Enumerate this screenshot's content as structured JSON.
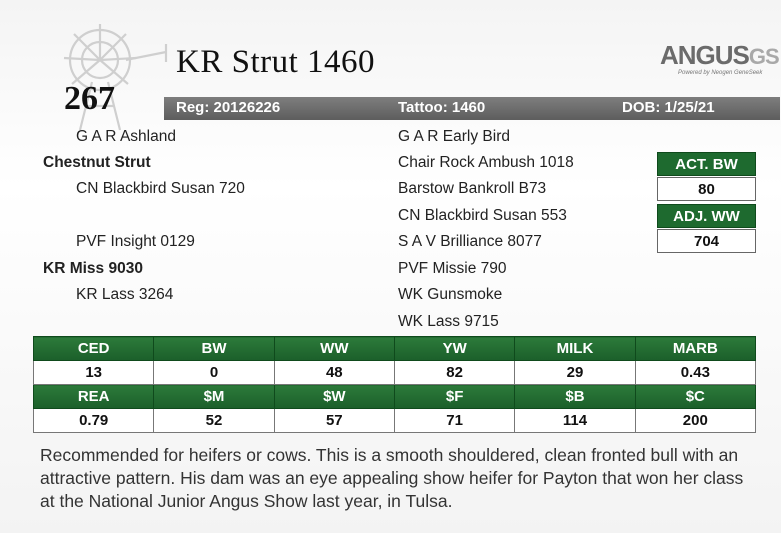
{
  "header": {
    "lot_number": "267",
    "animal_name": "KR Strut 1460",
    "logo_text": "ANGUS",
    "logo_suffix": "GS",
    "logo_subtitle": "Powered by Neogen GeneSeek",
    "registration": "Reg: 20126226",
    "tattoo": "Tattoo: 1460",
    "dob": "DOB: 1/25/21"
  },
  "pedigree": {
    "sire_sire": "G A R Ashland",
    "sire": "Chestnut Strut",
    "sire_dam": "CN Blackbird Susan 720",
    "dam_sire": "PVF Insight 0129",
    "dam": "KR Miss 9030",
    "dam_dam": "KR Lass 3264",
    "sss": "G A R Early Bird",
    "ssd": "Chair Rock Ambush 1018",
    "sds": "Barstow Bankroll B73",
    "sdd": "CN Blackbird Susan 553",
    "dss": "S A V Brilliance 8077",
    "dsd": "PVF Missie 790",
    "dds": "WK Gunsmoke",
    "ddd": "WK Lass 9715"
  },
  "weights": {
    "act_bw_label": "ACT. BW",
    "act_bw_value": "80",
    "adj_ww_label": "ADJ. WW",
    "adj_ww_value": "704"
  },
  "epds": {
    "row1_headers": [
      "CED",
      "BW",
      "WW",
      "YW",
      "MILK",
      "MARB"
    ],
    "row1_values": [
      "13",
      "0",
      "48",
      "82",
      "29",
      "0.43"
    ],
    "row2_headers": [
      "REA",
      "$M",
      "$W",
      "$F",
      "$B",
      "$C"
    ],
    "row2_values": [
      "0.79",
      "52",
      "57",
      "71",
      "114",
      "200"
    ]
  },
  "comments": "Recommended for heifers or cows. This is a smooth shouldered, clean fronted bull with an attractive pattern. His dam was an eye appealing show heifer for Payton that won her class at the National Junior Angus Show last year, in Tulsa.",
  "colors": {
    "accent_green": "#1e6a2f",
    "info_bar_gray": "#6e6e6e"
  }
}
